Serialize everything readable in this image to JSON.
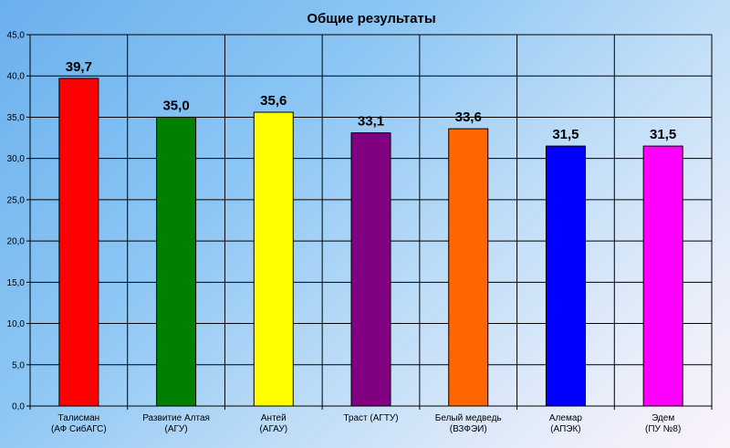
{
  "chart_data": {
    "type": "bar",
    "title": "Общие результаты",
    "xlabel": "",
    "ylabel": "",
    "ylim": [
      0,
      45
    ],
    "ytick_step": 5,
    "ytick_labels": [
      "0,0",
      "5,0",
      "10,0",
      "15,0",
      "20,0",
      "25,0",
      "30,0",
      "35,0",
      "40,0",
      "45,0"
    ],
    "grid": true,
    "legend": "none",
    "categories": [
      [
        "Талисман",
        "(АФ СибАГС)"
      ],
      [
        "Развитие Алтая",
        "(АГУ)"
      ],
      [
        "Антей",
        "(АГАУ)"
      ],
      [
        "Траст (АГТУ)"
      ],
      [
        "Белый медведь",
        "(ВЗФЭИ)"
      ],
      [
        "Алемар",
        "(АПЭК)"
      ],
      [
        "Эдем",
        "(ПУ №8)"
      ]
    ],
    "values": [
      39.7,
      35.0,
      35.6,
      33.1,
      33.6,
      31.5,
      31.5
    ],
    "value_labels": [
      "39,7",
      "35,0",
      "35,6",
      "33,1",
      "33,6",
      "31,5",
      "31,5"
    ],
    "colors": [
      "#ff0000",
      "#008000",
      "#ffff00",
      "#800080",
      "#ff6600",
      "#0000ff",
      "#ff00ff"
    ]
  }
}
